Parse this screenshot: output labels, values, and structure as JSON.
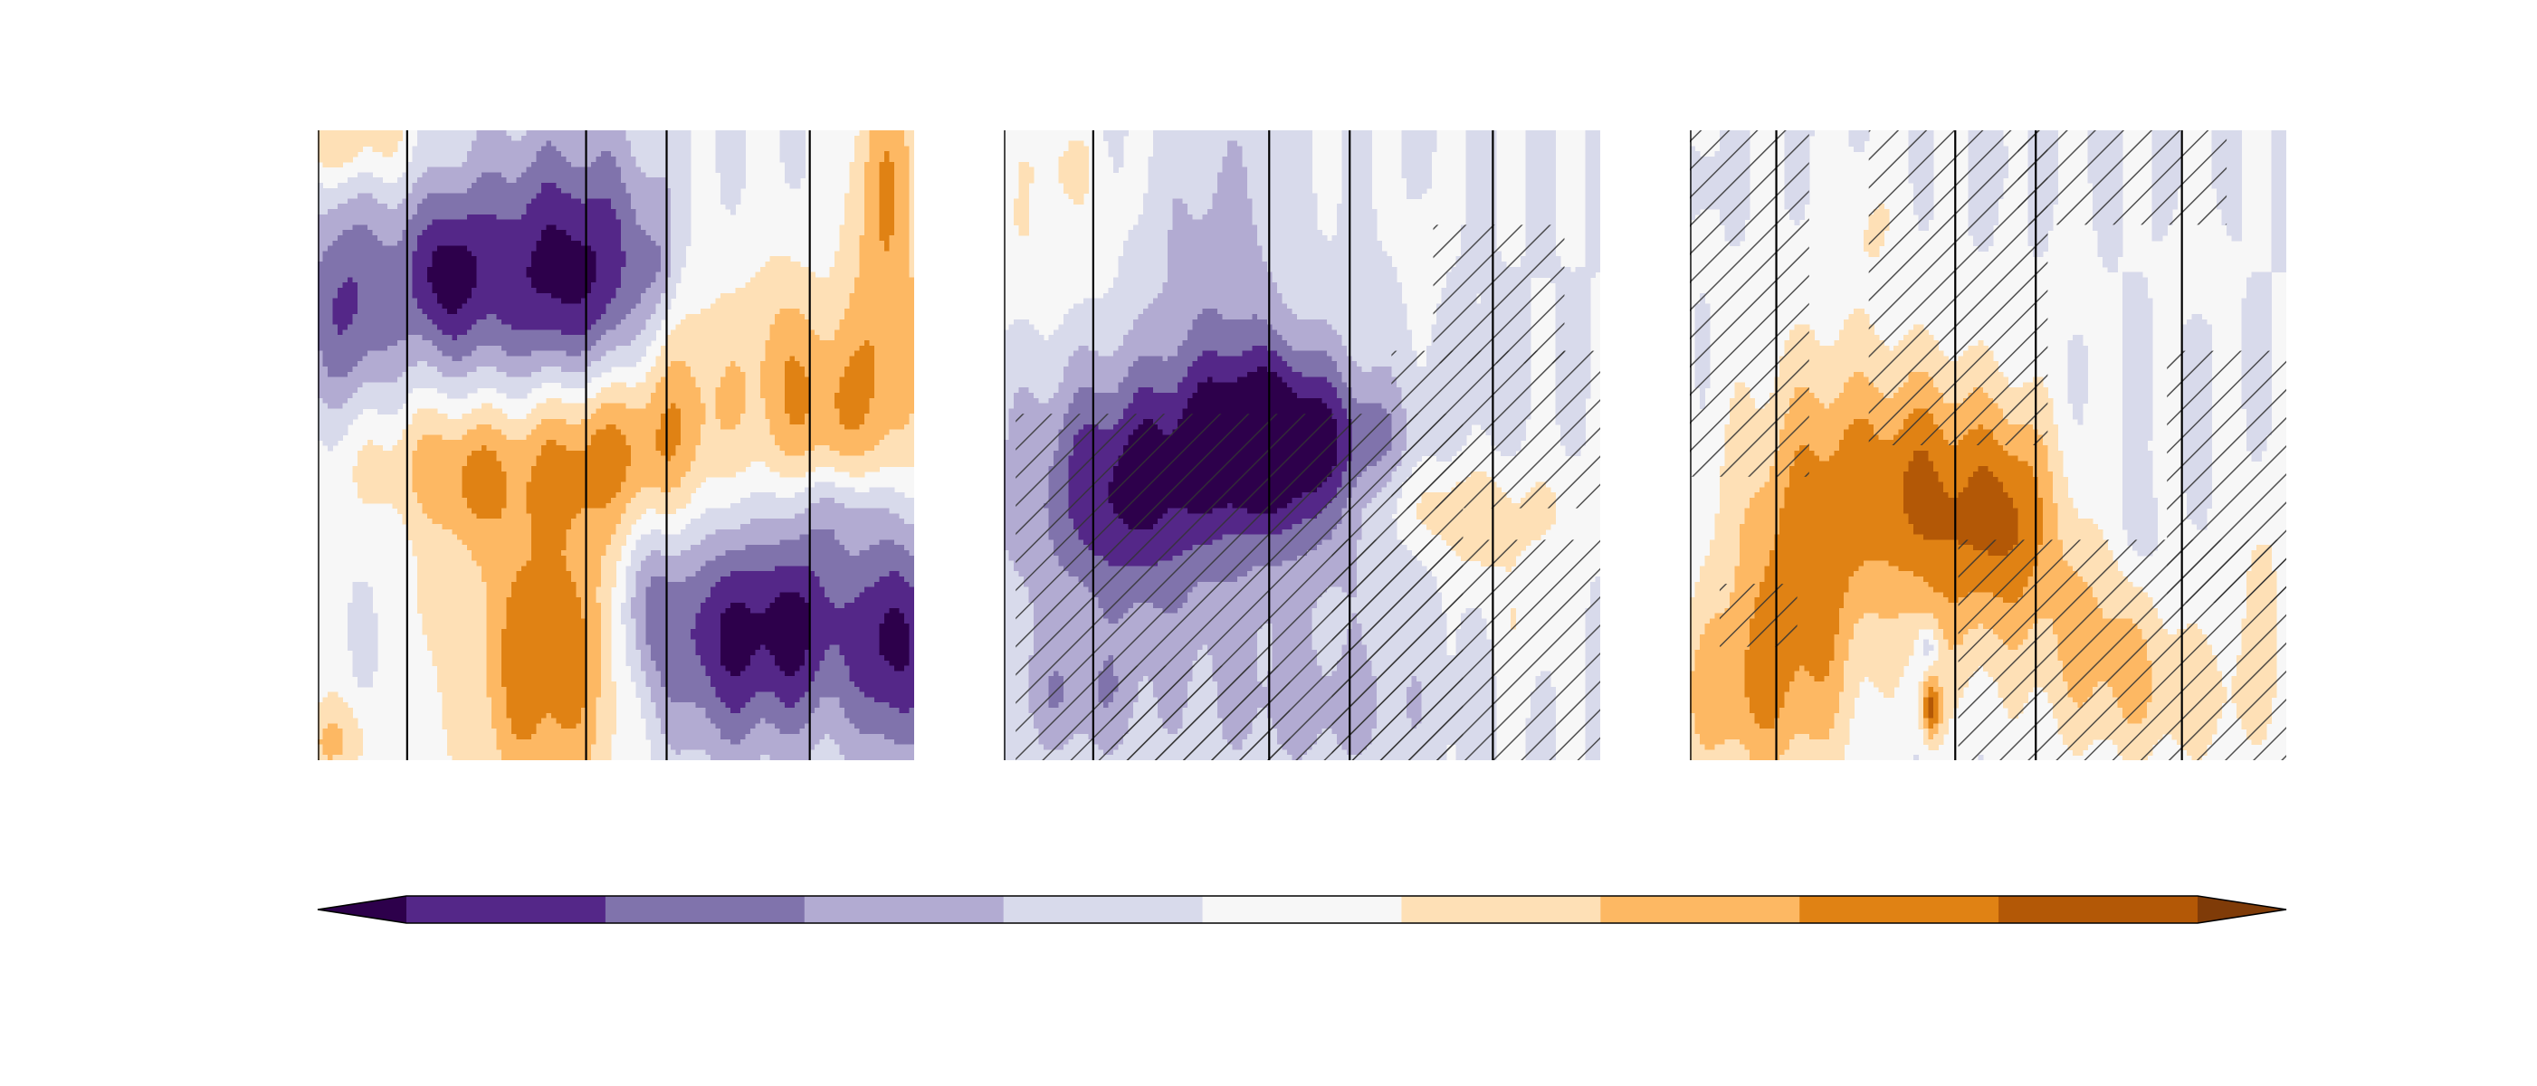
{
  "chart_data": {
    "type": "heatmap",
    "title": "",
    "panels": [
      {
        "id": "left",
        "hatched": false,
        "vertical_dividers": [
          0.15,
          0.45,
          0.585,
          0.825
        ],
        "blobs": [
          {
            "x": 0.05,
            "y": 0.28,
            "sx": 0.06,
            "sy": 0.13,
            "v": -3
          },
          {
            "x": 0.21,
            "y": 0.23,
            "sx": 0.05,
            "sy": 0.09,
            "v": -3
          },
          {
            "x": 0.42,
            "y": 0.23,
            "sx": 0.14,
            "sy": 0.15,
            "v": -4.5
          },
          {
            "x": 0.57,
            "y": 0.22,
            "sx": 0.02,
            "sy": 0.05,
            "v": -1
          },
          {
            "x": 0.62,
            "y": 0.36,
            "sx": 0.07,
            "sy": 0.18,
            "v": 2.5
          },
          {
            "x": 0.46,
            "y": 0.5,
            "sx": 0.11,
            "sy": 0.1,
            "v": 3.5
          },
          {
            "x": 0.38,
            "y": 0.84,
            "sx": 0.1,
            "sy": 0.18,
            "v": 3.8
          },
          {
            "x": 0.55,
            "y": 0.75,
            "sx": 0.03,
            "sy": 0.1,
            "v": -2
          },
          {
            "x": 0.68,
            "y": 0.8,
            "sx": 0.09,
            "sy": 0.13,
            "v": -4
          },
          {
            "x": 0.82,
            "y": 0.78,
            "sx": 0.06,
            "sy": 0.12,
            "v": -3
          },
          {
            "x": 0.965,
            "y": 0.8,
            "sx": 0.05,
            "sy": 0.14,
            "v": -4.6
          },
          {
            "x": 0.95,
            "y": 0.38,
            "sx": 0.05,
            "sy": 0.2,
            "v": 3
          },
          {
            "x": 0.78,
            "y": 0.4,
            "sx": 0.05,
            "sy": 0.15,
            "v": 2.5
          },
          {
            "x": 0.86,
            "y": 0.45,
            "sx": 0.04,
            "sy": 0.1,
            "v": 2
          },
          {
            "x": 0.96,
            "y": 0.05,
            "sx": 0.05,
            "sy": 0.12,
            "v": 2
          },
          {
            "x": 0.05,
            "y": 0.02,
            "sx": 0.08,
            "sy": 0.05,
            "v": 2
          },
          {
            "x": 0.02,
            "y": 0.97,
            "sx": 0.06,
            "sy": 0.05,
            "v": 2
          },
          {
            "x": 0.12,
            "y": 0.52,
            "sx": 0.1,
            "sy": 0.08,
            "v": 1.5
          },
          {
            "x": 0.25,
            "y": 0.55,
            "sx": 0.06,
            "sy": 0.08,
            "v": 2
          },
          {
            "x": 0.18,
            "y": 0.78,
            "sx": 0.03,
            "sy": 0.09,
            "v": 0.8
          },
          {
            "x": 0.88,
            "y": 0.6,
            "sx": 0.06,
            "sy": 0.05,
            "v": -1.5
          }
        ]
      },
      {
        "id": "middle",
        "hatched": true,
        "vertical_dividers": [
          0.15,
          0.445,
          0.58,
          0.82
        ],
        "blobs": [
          {
            "x": 0.2,
            "y": 0.56,
            "sx": 0.1,
            "sy": 0.12,
            "v": -3
          },
          {
            "x": 0.4,
            "y": 0.48,
            "sx": 0.09,
            "sy": 0.1,
            "v": -3.2
          },
          {
            "x": 0.5,
            "y": 0.5,
            "sx": 0.08,
            "sy": 0.1,
            "v": -2.8
          },
          {
            "x": 0.31,
            "y": 0.65,
            "sx": 0.25,
            "sy": 0.22,
            "v": -1.5
          },
          {
            "x": 0.06,
            "y": 0.18,
            "sx": 0.1,
            "sy": 0.1,
            "v": 1
          },
          {
            "x": 0.31,
            "y": 0.2,
            "sx": 0.06,
            "sy": 0.14,
            "v": -0.9
          },
          {
            "x": 0.4,
            "y": 0.18,
            "sx": 0.05,
            "sy": 0.15,
            "v": -0.9
          },
          {
            "x": 0.62,
            "y": 0.48,
            "sx": 0.05,
            "sy": 0.05,
            "v": -1
          },
          {
            "x": 0.7,
            "y": 0.6,
            "sx": 0.07,
            "sy": 0.05,
            "v": 1.2
          },
          {
            "x": 0.79,
            "y": 0.63,
            "sx": 0.05,
            "sy": 0.07,
            "v": 1.4
          },
          {
            "x": 0.92,
            "y": 0.6,
            "sx": 0.07,
            "sy": 0.06,
            "v": 1
          },
          {
            "x": 0.7,
            "y": 0.2,
            "sx": 0.02,
            "sy": 0.06,
            "v": 1
          },
          {
            "x": 0.87,
            "y": 0.78,
            "sx": 0.04,
            "sy": 0.08,
            "v": 0.9
          },
          {
            "x": 0.12,
            "y": 0.9,
            "sx": 0.07,
            "sy": 0.06,
            "v": -1.4
          },
          {
            "x": 0.55,
            "y": 0.92,
            "sx": 0.12,
            "sy": 0.06,
            "v": -1.1
          },
          {
            "x": 0.82,
            "y": 0.4,
            "sx": 0.03,
            "sy": 0.06,
            "v": -0.8
          },
          {
            "x": 0.1,
            "y": 0.05,
            "sx": 0.05,
            "sy": 0.04,
            "v": 0.8
          }
        ],
        "hatch_rects": [
          [
            0.02,
            0.45,
            0.75,
            0.55
          ],
          [
            0.65,
            0.35,
            0.35,
            0.25
          ],
          [
            0.72,
            0.15,
            0.22,
            0.22
          ],
          [
            0.55,
            0.65,
            0.45,
            0.35
          ],
          [
            0.18,
            0.85,
            0.3,
            0.15
          ]
        ]
      },
      {
        "id": "right",
        "hatched": true,
        "vertical_dividers": [
          0.145,
          0.445,
          0.58,
          0.825
        ],
        "blobs": [
          {
            "x": 0.12,
            "y": 0.72,
            "sx": 0.07,
            "sy": 0.22,
            "v": 2
          },
          {
            "x": 0.05,
            "y": 0.9,
            "sx": 0.1,
            "sy": 0.1,
            "v": 1.8
          },
          {
            "x": 0.22,
            "y": 0.68,
            "sx": 0.06,
            "sy": 0.22,
            "v": 2.5
          },
          {
            "x": 0.34,
            "y": 0.55,
            "sx": 0.08,
            "sy": 0.14,
            "v": 2.5
          },
          {
            "x": 0.45,
            "y": 0.63,
            "sx": 0.08,
            "sy": 0.16,
            "v": 3
          },
          {
            "x": 0.55,
            "y": 0.6,
            "sx": 0.05,
            "sy": 0.12,
            "v": 2.5
          },
          {
            "x": 0.68,
            "y": 0.78,
            "sx": 0.08,
            "sy": 0.12,
            "v": 2
          },
          {
            "x": 0.82,
            "y": 0.9,
            "sx": 0.13,
            "sy": 0.08,
            "v": 1.5
          },
          {
            "x": 0.96,
            "y": 0.72,
            "sx": 0.03,
            "sy": 0.12,
            "v": 1.2
          },
          {
            "x": 0.405,
            "y": 0.92,
            "sx": 0.012,
            "sy": 0.035,
            "v": 4
          },
          {
            "x": 0.4,
            "y": 0.82,
            "sx": 0.012,
            "sy": 0.025,
            "v": -1.6
          },
          {
            "x": 0.64,
            "y": 0.22,
            "sx": 0.02,
            "sy": 0.06,
            "v": 0.9
          },
          {
            "x": 0.3,
            "y": 0.15,
            "sx": 0.04,
            "sy": 0.08,
            "v": 1
          },
          {
            "x": 0.85,
            "y": 0.2,
            "sx": 0.03,
            "sy": 0.05,
            "v": 0.9
          },
          {
            "x": 0.75,
            "y": 0.65,
            "sx": 0.03,
            "sy": 0.06,
            "v": -1
          },
          {
            "x": 0.51,
            "y": 0.05,
            "sx": 0.015,
            "sy": 0.03,
            "v": -0.8
          },
          {
            "x": 0.02,
            "y": 0.08,
            "sx": 0.02,
            "sy": 0.03,
            "v": -0.8
          }
        ],
        "hatch_rects": [
          [
            0.0,
            0.0,
            0.2,
            0.55
          ],
          [
            0.3,
            0.0,
            0.3,
            0.5
          ],
          [
            0.55,
            0.0,
            0.35,
            0.15
          ],
          [
            0.05,
            0.72,
            0.13,
            0.1
          ],
          [
            0.45,
            0.65,
            0.55,
            0.35
          ],
          [
            0.8,
            0.35,
            0.2,
            0.4
          ]
        ]
      }
    ],
    "colorbar": {
      "orientation": "horizontal",
      "extend": "both",
      "levels": [
        -4,
        -3,
        -2,
        -1,
        0,
        1,
        2,
        3,
        4
      ],
      "colors": [
        "#2d004b",
        "#542788",
        "#8073ac",
        "#b2abd2",
        "#d8daeb",
        "#f7f7f7",
        "#fee0b6",
        "#fdb863",
        "#e08214",
        "#b35806",
        "#7f3b08"
      ],
      "tick_labels": []
    }
  }
}
